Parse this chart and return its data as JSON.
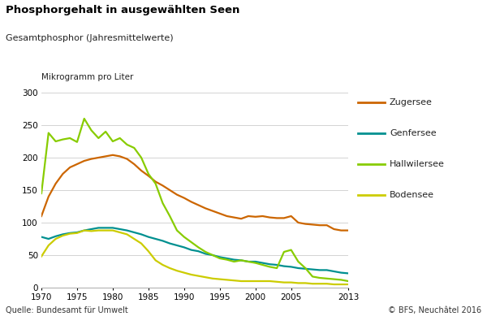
{
  "title": "Phosphorgehalt in ausgewählten Seen",
  "subtitle": "Gesamtphosphor (Jahresmittelwerte)",
  "ylabel": "Mikrogramm pro Liter",
  "source_left": "Quelle: Bundesamt für Umwelt",
  "source_right": "© BFS, Neuchâtel 2016",
  "ylim": [
    0,
    300
  ],
  "yticks": [
    0,
    50,
    100,
    150,
    200,
    250,
    300
  ],
  "xticks": [
    1970,
    1975,
    1980,
    1985,
    1990,
    1995,
    2000,
    2005,
    2013
  ],
  "xlim": [
    1970,
    2013
  ],
  "background_color": "#ffffff",
  "zugersee_color": "#cc6600",
  "genfersee_color": "#009090",
  "hallwilersee_color": "#88cc00",
  "bodensee_color": "#cccc00",
  "years": [
    1970,
    1971,
    1972,
    1973,
    1974,
    1975,
    1976,
    1977,
    1978,
    1979,
    1980,
    1981,
    1982,
    1983,
    1984,
    1985,
    1986,
    1987,
    1988,
    1989,
    1990,
    1991,
    1992,
    1993,
    1994,
    1995,
    1996,
    1997,
    1998,
    1999,
    2000,
    2001,
    2002,
    2003,
    2004,
    2005,
    2006,
    2007,
    2008,
    2009,
    2010,
    2011,
    2012,
    2013
  ],
  "values_zugersee": [
    110,
    140,
    160,
    175,
    185,
    190,
    195,
    198,
    200,
    202,
    204,
    202,
    198,
    190,
    180,
    172,
    163,
    157,
    150,
    143,
    138,
    132,
    127,
    122,
    118,
    114,
    110,
    108,
    106,
    110,
    109,
    110,
    108,
    107,
    107,
    110,
    100,
    98,
    97,
    96,
    96,
    90,
    88,
    88
  ],
  "values_genfersee": [
    78,
    75,
    79,
    82,
    84,
    85,
    88,
    90,
    92,
    92,
    92,
    90,
    88,
    85,
    82,
    78,
    75,
    72,
    68,
    65,
    62,
    58,
    56,
    52,
    50,
    47,
    45,
    43,
    42,
    40,
    40,
    38,
    36,
    35,
    33,
    32,
    30,
    29,
    28,
    27,
    27,
    25,
    23,
    22
  ],
  "values_hallwilersee": [
    145,
    238,
    225,
    228,
    230,
    224,
    260,
    242,
    230,
    240,
    225,
    230,
    220,
    215,
    200,
    175,
    160,
    130,
    110,
    88,
    78,
    70,
    62,
    55,
    50,
    45,
    43,
    40,
    42,
    40,
    38,
    35,
    32,
    30,
    55,
    58,
    40,
    30,
    17,
    15,
    14,
    13,
    12,
    10
  ],
  "values_bodensee": [
    48,
    65,
    75,
    80,
    83,
    84,
    88,
    87,
    88,
    88,
    88,
    85,
    82,
    75,
    68,
    56,
    42,
    35,
    30,
    26,
    23,
    20,
    18,
    16,
    14,
    13,
    12,
    11,
    10,
    10,
    10,
    10,
    10,
    9,
    8,
    8,
    7,
    7,
    6,
    6,
    6,
    5,
    5,
    5
  ]
}
